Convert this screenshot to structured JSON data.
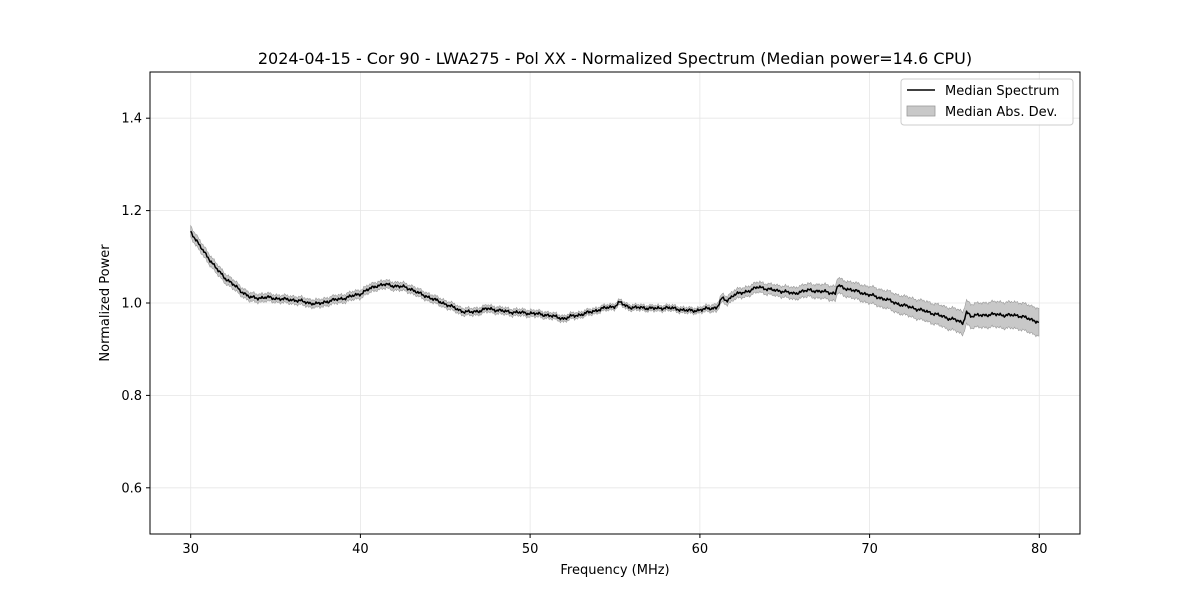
{
  "chart_data": {
    "type": "line",
    "title": "2024-04-15 - Cor 90 - LWA275 - Pol XX - Normalized Spectrum (Median power=14.6 CPU)",
    "xlabel": "Frequency (MHz)",
    "ylabel": "Normalized Power",
    "xlim": [
      27.6,
      82.4
    ],
    "ylim": [
      0.5,
      1.5
    ],
    "xticks": [
      30,
      40,
      50,
      60,
      70,
      80
    ],
    "xtick_labels": [
      "30",
      "40",
      "50",
      "60",
      "70",
      "80"
    ],
    "yticks": [
      0.6,
      0.8,
      1.0,
      1.2,
      1.4
    ],
    "ytick_labels": [
      "0.6",
      "0.8",
      "1.0",
      "1.2",
      "1.4"
    ],
    "grid": true,
    "legend_position": "top-right",
    "colors": {
      "line": "#000000",
      "band": "#c8c8c8",
      "band_edge": "#9a9a9a",
      "grid": "#e6e6e6"
    },
    "series": [
      {
        "name": "Median Spectrum",
        "kind": "line",
        "x": [
          30,
          30.5,
          31,
          31.5,
          32,
          32.5,
          33,
          33.5,
          34,
          34.5,
          35,
          35.5,
          36,
          36.5,
          37,
          37.5,
          38,
          38.5,
          39,
          39.5,
          40,
          40.5,
          41,
          41.5,
          42,
          42.5,
          43,
          43.5,
          44,
          44.5,
          45,
          45.5,
          46,
          46.5,
          47,
          47.5,
          48,
          48.5,
          49,
          49.5,
          50,
          50.5,
          51,
          51.5,
          52,
          52.5,
          53,
          53.5,
          54,
          54.5,
          55,
          55.3,
          55.6,
          56,
          56.5,
          57,
          57.5,
          58,
          58.5,
          59,
          59.5,
          60,
          60.5,
          61,
          61.3,
          61.6,
          62,
          62.5,
          63,
          63.5,
          64,
          64.5,
          65,
          65.5,
          66,
          66.5,
          67,
          67.5,
          68,
          68.1,
          68.5,
          69,
          69.5,
          70,
          70.5,
          71,
          71.5,
          72,
          72.5,
          73,
          73.5,
          74,
          74.5,
          75,
          75.5,
          75.7,
          76,
          76.5,
          77,
          77.5,
          78,
          78.5,
          79,
          79.5,
          80
        ],
        "values": [
          1.155,
          1.125,
          1.1,
          1.075,
          1.055,
          1.04,
          1.025,
          1.012,
          1.011,
          1.012,
          1.01,
          1.008,
          1.007,
          1.004,
          1.0,
          0.998,
          1.003,
          1.007,
          1.01,
          1.015,
          1.02,
          1.03,
          1.038,
          1.04,
          1.037,
          1.035,
          1.03,
          1.02,
          1.013,
          1.005,
          0.998,
          0.99,
          0.982,
          0.98,
          0.983,
          0.988,
          0.985,
          0.982,
          0.98,
          0.979,
          0.978,
          0.976,
          0.974,
          0.97,
          0.966,
          0.972,
          0.975,
          0.98,
          0.985,
          0.99,
          0.993,
          1.002,
          0.994,
          0.99,
          0.99,
          0.989,
          0.988,
          0.99,
          0.988,
          0.985,
          0.983,
          0.985,
          0.988,
          0.99,
          1.01,
          1.005,
          1.018,
          1.022,
          1.028,
          1.035,
          1.03,
          1.027,
          1.025,
          1.02,
          1.025,
          1.028,
          1.025,
          1.024,
          1.02,
          1.038,
          1.032,
          1.028,
          1.022,
          1.018,
          1.012,
          1.008,
          1.0,
          0.995,
          0.99,
          0.985,
          0.98,
          0.975,
          0.968,
          0.965,
          0.955,
          0.982,
          0.97,
          0.975,
          0.973,
          0.977,
          0.972,
          0.975,
          0.97,
          0.965,
          0.958
        ]
      },
      {
        "name": "Median Abs. Dev.",
        "kind": "band",
        "x": [
          30,
          35,
          40,
          45,
          50,
          55,
          60,
          62,
          65,
          68,
          70,
          72,
          74,
          75.5,
          77,
          78,
          79,
          80
        ],
        "halfwidth": [
          0.012,
          0.008,
          0.009,
          0.008,
          0.007,
          0.006,
          0.006,
          0.01,
          0.012,
          0.016,
          0.018,
          0.02,
          0.022,
          0.025,
          0.027,
          0.028,
          0.029,
          0.03
        ]
      }
    ]
  }
}
